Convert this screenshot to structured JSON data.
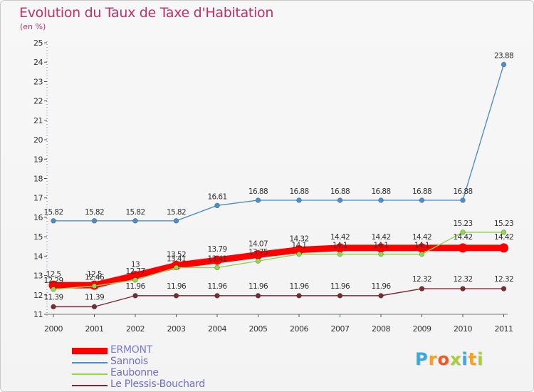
{
  "chart_data": {
    "type": "line",
    "title": "Evolution du Taux de Taxe d'Habitation",
    "subtitle": "(en %)",
    "xlabel": "",
    "ylabel": "",
    "ylim": [
      11,
      25
    ],
    "yticks": [
      "11",
      "12",
      "13",
      "14",
      "15",
      "16",
      "17",
      "18",
      "19",
      "20",
      "21",
      "22",
      "23",
      "24",
      "25"
    ],
    "categories": [
      "2000",
      "2001",
      "2002",
      "2003",
      "2004",
      "2005",
      "2006",
      "2007",
      "2008",
      "2009",
      "2010",
      "2011"
    ],
    "legend_position": "bottom-left",
    "series": [
      {
        "name": "ERMONT",
        "color": "#ff0000",
        "style": "thick",
        "values": [
          12.5,
          12.5,
          13,
          13.52,
          13.79,
          14.07,
          14.32,
          14.42,
          14.42,
          14.42,
          14.42,
          14.42
        ],
        "labels": [
          "12.5",
          "12.5",
          "13",
          "13.52",
          "13.79",
          "14.07",
          "14.32",
          "14.42",
          "14.42",
          "14.42",
          "14.42",
          "14.42"
        ]
      },
      {
        "name": "Sannois",
        "color": "#4f8fc9",
        "style": "thin",
        "values": [
          15.82,
          15.82,
          15.82,
          15.82,
          16.61,
          16.88,
          16.88,
          16.88,
          16.88,
          16.88,
          16.88,
          23.88
        ],
        "labels": [
          "15.82",
          "15.82",
          "15.82",
          "15.82",
          "16.61",
          "16.88",
          "16.88",
          "16.88",
          "16.88",
          "16.88",
          "16.88",
          "23.88"
        ]
      },
      {
        "name": "Eaubonne",
        "color": "#8ed84a",
        "style": "thin",
        "values": [
          12.29,
          12.46,
          12.77,
          13.41,
          13.41,
          13.75,
          14.1,
          14.1,
          14.1,
          14.1,
          15.23,
          15.23
        ],
        "labels": [
          "12.29",
          "12.46",
          "12.77",
          "13.41",
          "13.41",
          "13.75",
          "14.1",
          "14.1",
          "14.1",
          "14.1",
          "15.23",
          "15.23"
        ]
      },
      {
        "name": "Le Plessis-Bouchard",
        "color": "#7a2a30",
        "style": "thin",
        "values": [
          11.39,
          11.39,
          11.96,
          11.96,
          11.96,
          11.96,
          11.96,
          11.96,
          11.96,
          12.32,
          12.32,
          12.32
        ],
        "labels": [
          "11.39",
          "11.39",
          "11.96",
          "11.96",
          "11.96",
          "11.96",
          "11.96",
          "11.96",
          "11.96",
          "12.32",
          "12.32",
          "12.32"
        ]
      }
    ]
  },
  "brand": {
    "letters": [
      "P",
      "r",
      "o",
      "x",
      "i",
      "t",
      "i"
    ],
    "colors": [
      "#3aa7df",
      "#f6a31b",
      "#ef5a24",
      "#a9cf38",
      "#3aa7df",
      "#f6a31b",
      "#a9cf38"
    ]
  }
}
